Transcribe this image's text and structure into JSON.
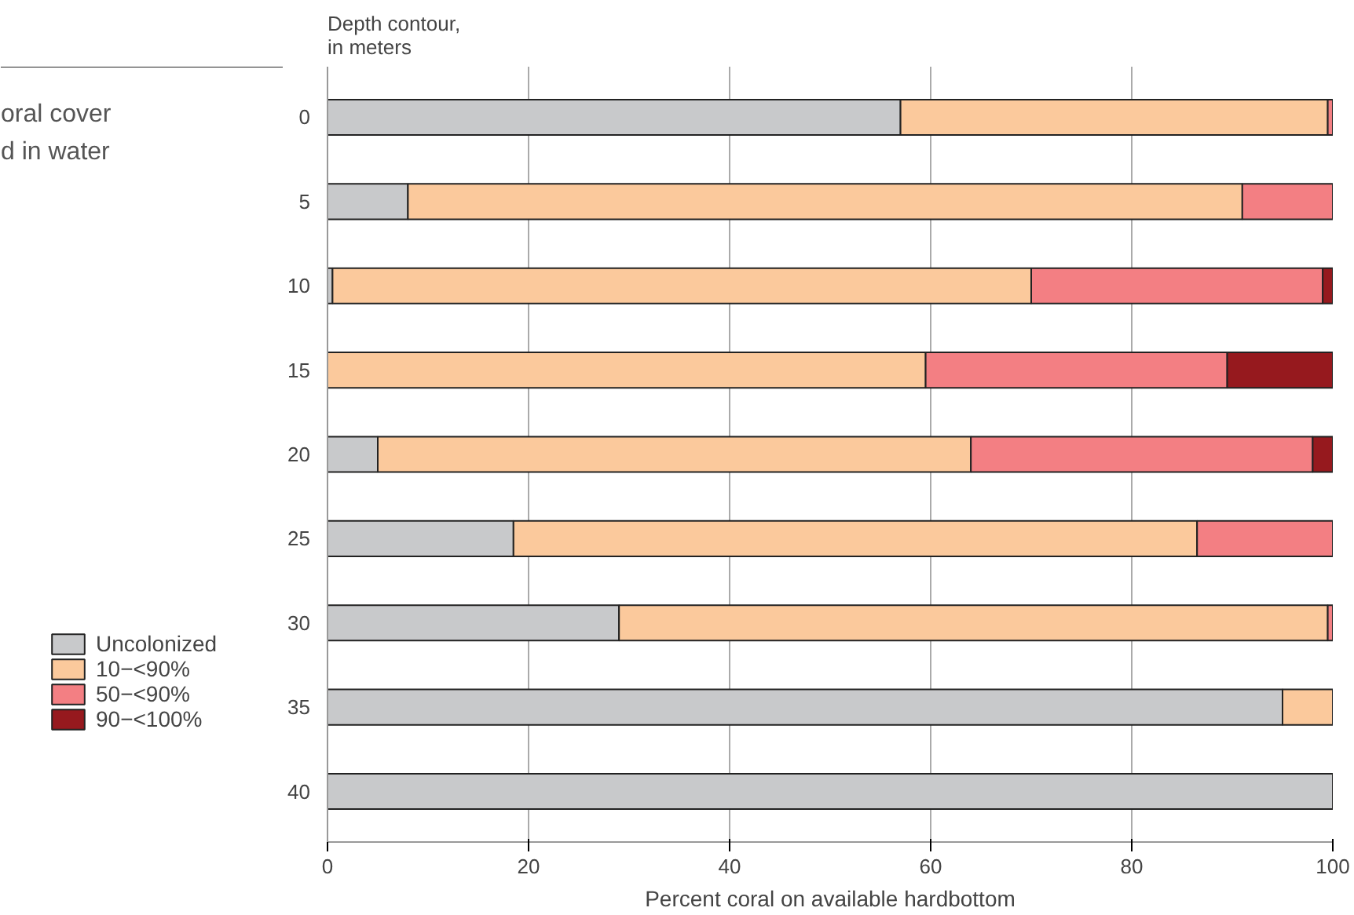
{
  "chart_data": {
    "type": "bar",
    "orientation": "horizontal",
    "stacked": true,
    "ylabel": "Depth contour,\nin meters",
    "xlabel": "Percent coral on available hardbottom",
    "annotations": [
      "oral cover",
      "d in water"
    ],
    "categories": [
      "0",
      "5",
      "10",
      "15",
      "20",
      "25",
      "30",
      "35",
      "40"
    ],
    "series": [
      {
        "name": "Uncolonized",
        "color": "#c8c9cb",
        "values": [
          57,
          8,
          0.5,
          0,
          5,
          18.5,
          29,
          95,
          100
        ]
      },
      {
        "name": "10−<90%",
        "color": "#fbc99c",
        "values": [
          42.5,
          83,
          69.5,
          59.5,
          59,
          68,
          70.5,
          5,
          0
        ]
      },
      {
        "name": "50−<90%",
        "color": "#f37f83",
        "values": [
          0.5,
          9,
          29,
          30,
          34,
          13.5,
          0.5,
          0,
          0
        ]
      },
      {
        "name": "90−<100%",
        "color": "#96191e",
        "values": [
          0,
          0,
          1,
          10.5,
          2,
          0,
          0,
          0,
          0
        ]
      }
    ],
    "xlim": [
      0,
      100
    ],
    "xticks": [
      0,
      20,
      40,
      60,
      80,
      100
    ],
    "grid": "x",
    "legend": "left"
  }
}
